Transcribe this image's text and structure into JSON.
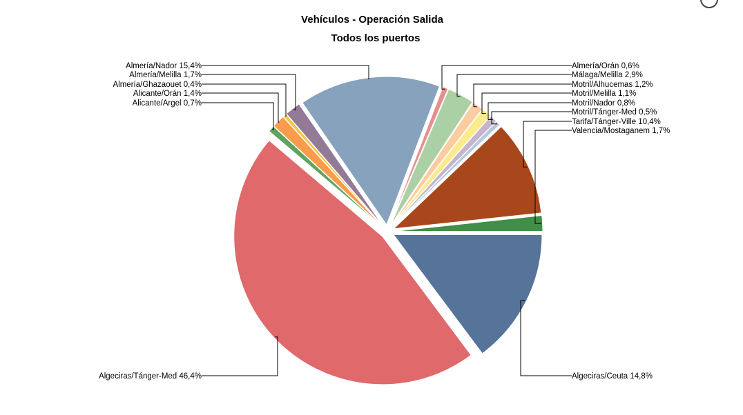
{
  "chart_data": {
    "type": "pie",
    "title": "Vehículos - Operación Salida",
    "subtitle": "Todos los puertos",
    "slices": [
      {
        "name": "Algeciras/Ceuta",
        "value": 14.8,
        "label": "Algeciras/Ceuta 14,8%",
        "color": "#567399"
      },
      {
        "name": "Algeciras/Tánger-Med",
        "value": 46.4,
        "label": "Algeciras/Tánger-Med 46,4%",
        "color": "#e0696b"
      },
      {
        "name": "Alicante/Argel",
        "value": 0.7,
        "label": "Alicante/Argel 0,7%",
        "color": "#5fa35f"
      },
      {
        "name": "Alicante/Orán",
        "value": 1.4,
        "label": "Alicante/Orán 1,4%",
        "color": "#f99c4c"
      },
      {
        "name": "Almería/Ghazaouet",
        "value": 0.4,
        "label": "Almería/Ghazaouet 0,4%",
        "color": "#f5c542"
      },
      {
        "name": "Almería/Melilla",
        "value": 1.7,
        "label": "Almería/Melilla 1,7%",
        "color": "#937a96"
      },
      {
        "name": "Almería/Nador",
        "value": 15.4,
        "label": "Almería/Nador 15,4%",
        "color": "#87a2bd"
      },
      {
        "name": "Almería/Orán",
        "value": 0.6,
        "label": "Almería/Orán 0,6%",
        "color": "#e58f8d"
      },
      {
        "name": "Málaga/Melilla",
        "value": 2.9,
        "label": "Málaga/Melilla 2,9%",
        "color": "#acd0a5"
      },
      {
        "name": "Motril/Alhucemas",
        "value": 1.2,
        "label": "Motril/Alhucemas 1,2%",
        "color": "#fccca1"
      },
      {
        "name": "Motril/Melilla",
        "value": 1.1,
        "label": "Motril/Melilla 1,1%",
        "color": "#fceb8d"
      },
      {
        "name": "Motril/Nador",
        "value": 0.8,
        "label": "Motril/Nador 0,8%",
        "color": "#c4b5cc"
      },
      {
        "name": "Motril/Tánger-Med",
        "value": 0.5,
        "label": "Motril/Tánger-Med 0,5%",
        "color": "#b6c8de"
      },
      {
        "name": "Tarifa/Tánger-Ville",
        "value": 10.4,
        "label": "Tarifa/Tánger-Ville 10,4%",
        "color": "#a8471c"
      },
      {
        "name": "Valencia/Mostaganem",
        "value": 1.7,
        "label": "Valencia/Mostaganem 1,7%",
        "color": "#3f8f46"
      }
    ],
    "legend": "none"
  }
}
